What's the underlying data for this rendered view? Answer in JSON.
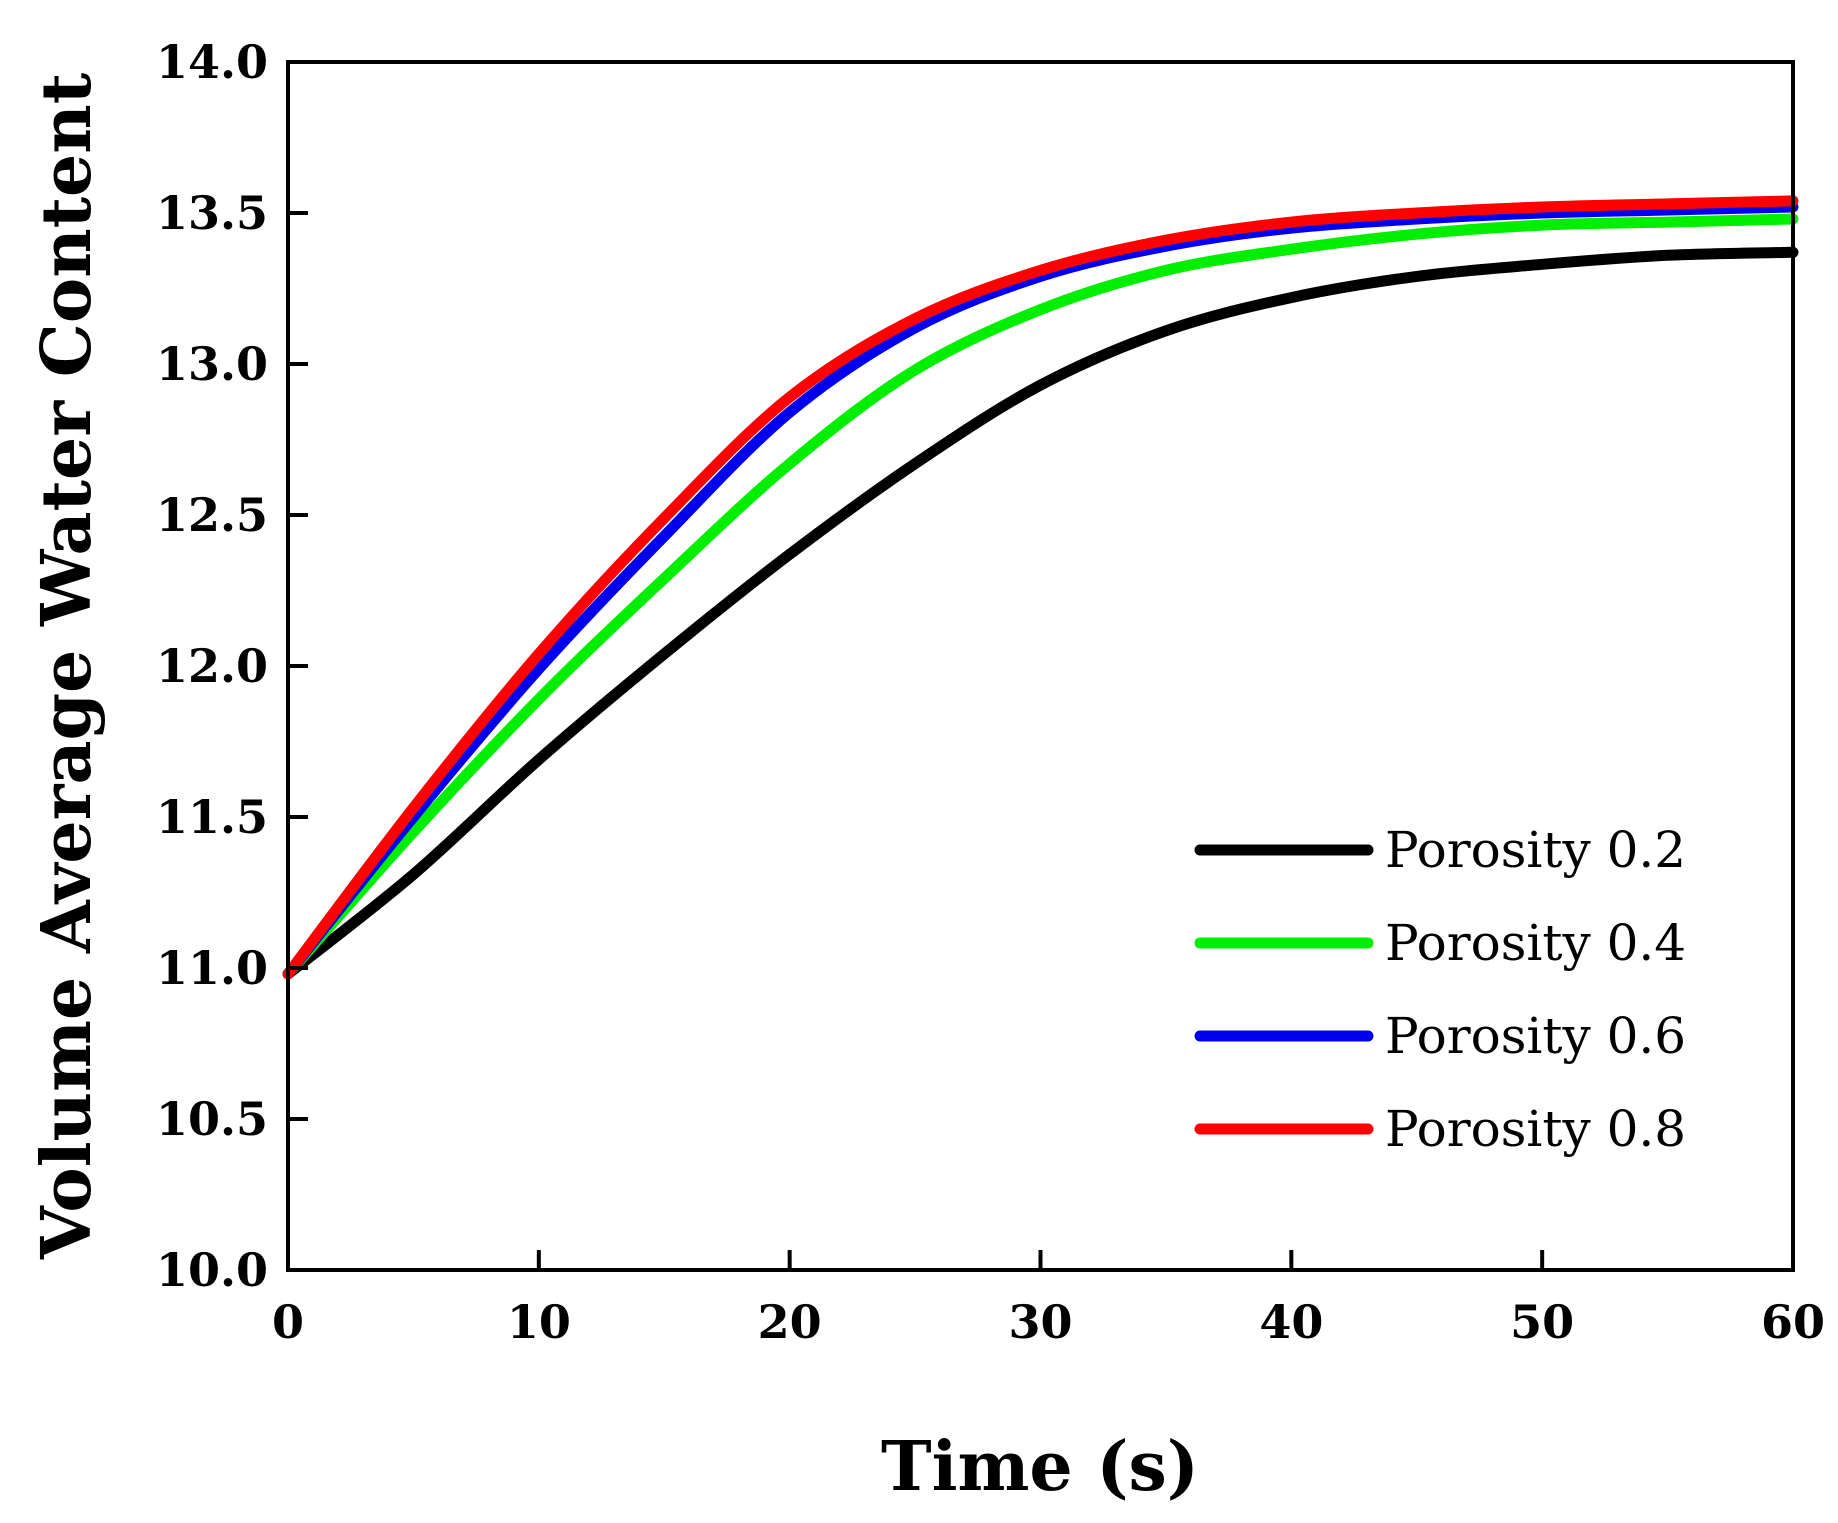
{
  "chart_data": {
    "type": "line",
    "title": "",
    "xlabel": "Time (s)",
    "ylabel": "Volume Average Water Content",
    "xlim": [
      0,
      60
    ],
    "ylim": [
      10.0,
      14.0
    ],
    "xticks": [
      0,
      10,
      20,
      30,
      40,
      50,
      60
    ],
    "xtick_labels": [
      "0",
      "10",
      "20",
      "30",
      "40",
      "50",
      "60"
    ],
    "yticks": [
      10.0,
      10.5,
      11.0,
      11.5,
      12.0,
      12.5,
      13.0,
      13.5,
      14.0
    ],
    "ytick_labels": [
      "10.0",
      "10.5",
      "11.0",
      "11.5",
      "12.0",
      "12.5",
      "13.0",
      "13.5",
      "14.0"
    ],
    "grid": false,
    "legend_position": "lower-right",
    "x": [
      0,
      5,
      10,
      15,
      20,
      25,
      30,
      35,
      40,
      45,
      50,
      55,
      60
    ],
    "series": [
      {
        "name": "Porosity 0.2",
        "color": "#000000",
        "values": [
          10.98,
          11.31,
          11.69,
          12.04,
          12.37,
          12.67,
          12.93,
          13.11,
          13.22,
          13.29,
          13.33,
          13.36,
          13.37
        ]
      },
      {
        "name": "Porosity 0.4",
        "color": "#00ee00",
        "values": [
          10.98,
          11.45,
          11.89,
          12.29,
          12.67,
          12.98,
          13.18,
          13.31,
          13.38,
          13.43,
          13.46,
          13.47,
          13.48
        ]
      },
      {
        "name": "Porosity 0.6",
        "color": "#0000ee",
        "values": [
          10.98,
          11.5,
          11.99,
          12.43,
          12.84,
          13.12,
          13.29,
          13.39,
          13.45,
          13.48,
          13.5,
          13.51,
          13.52
        ]
      },
      {
        "name": "Porosity 0.8",
        "color": "#ff0000",
        "values": [
          10.98,
          11.53,
          12.04,
          12.49,
          12.89,
          13.15,
          13.31,
          13.41,
          13.47,
          13.5,
          13.52,
          13.53,
          13.54
        ]
      }
    ]
  }
}
